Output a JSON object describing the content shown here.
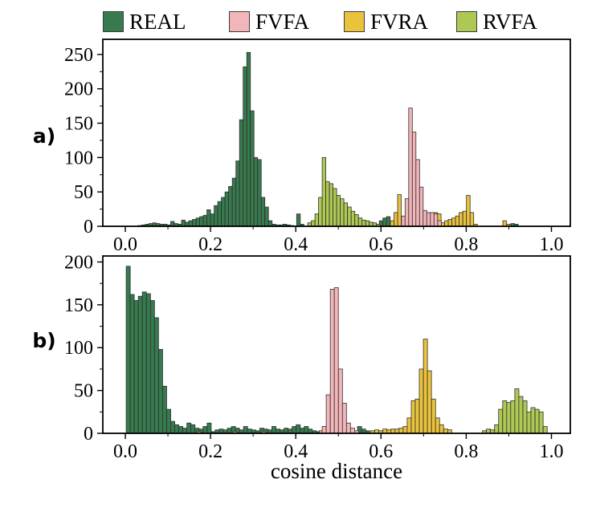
{
  "legend": {
    "position": "top",
    "items": [
      {
        "label": "REAL",
        "color": "#377a4e"
      },
      {
        "label": "FVFA",
        "color": "#f2b5ba"
      },
      {
        "label": "FVRA",
        "color": "#eac33d"
      },
      {
        "label": "RVFA",
        "color": "#aec854"
      }
    ]
  },
  "panels": {
    "a": {
      "label": "a)"
    },
    "b": {
      "label": "b)"
    }
  },
  "xlabel": "cosine distance",
  "colors": {
    "bar_edge": "#2e2e2e",
    "axis": "#000000",
    "background": "#ffffff"
  },
  "chart_data": [
    {
      "id": "a",
      "type": "bar",
      "subtype": "histogram",
      "title": "",
      "xlabel": "",
      "ylabel": "",
      "grid": false,
      "xlim": [
        -0.053,
        1.045
      ],
      "ylim": [
        0,
        272
      ],
      "yticks": [
        0,
        50,
        100,
        150,
        200,
        250
      ],
      "xticks": [
        0,
        0.2,
        0.4,
        0.6,
        0.8,
        1.0
      ],
      "xtick_labels": [
        "0.0",
        "0.2",
        "0.4",
        "0.6",
        "0.8",
        "1.0"
      ],
      "series": [
        {
          "name": "REAL",
          "color": "#377a4e",
          "segments": [
            {
              "x0": 0.03,
              "binw": 0.0085,
              "heights": [
                1,
                2,
                3,
                4,
                5,
                4,
                3,
                3,
                2,
                7,
                4,
                3,
                9,
                6,
                8,
                10,
                12,
                14,
                16,
                24,
                18,
                30,
                36,
                42,
                50,
                58,
                70,
                95,
                155,
                232,
                253,
                168,
                100,
                97,
                42,
                28,
                8,
                3,
                2,
                2,
                3,
                2,
                1
              ]
            },
            {
              "x0": 0.402,
              "binw": 0.0085,
              "heights": [
                18,
                3
              ]
            },
            {
              "x0": 0.562,
              "binw": 0.0085,
              "heights": [
                5,
                3,
                0,
                0,
                8,
                12,
                14
              ]
            },
            {
              "x0": 0.905,
              "binw": 0.0085,
              "heights": [
                4,
                3
              ]
            }
          ]
        },
        {
          "name": "RVFA",
          "color": "#aec854",
          "segments": [
            {
              "x0": 0.428,
              "binw": 0.0085,
              "heights": [
                5,
                8,
                18,
                42,
                100,
                65,
                62,
                55,
                45,
                40,
                34,
                28,
                22,
                17,
                12,
                9,
                8,
                6,
                5,
                3
              ]
            }
          ]
        },
        {
          "name": "FVRA",
          "color": "#eac33d",
          "segments": [
            {
              "x0": 0.622,
              "binw": 0.0085,
              "heights": [
                8,
                20,
                46
              ]
            },
            {
              "x0": 0.724,
              "binw": 0.0085,
              "heights": [
                20,
                18,
                5,
                8,
                10,
                12,
                15,
                20,
                22,
                45,
                20,
                3
              ]
            },
            {
              "x0": 0.886,
              "binw": 0.0085,
              "heights": [
                8,
                3
              ]
            }
          ]
        },
        {
          "name": "FVFA",
          "color": "#f2b5ba",
          "segments": [
            {
              "x0": 0.648,
              "binw": 0.0085,
              "heights": [
                15,
                40,
                172,
                137,
                97,
                57,
                23,
                20,
                20,
                18,
                8
              ]
            }
          ]
        }
      ]
    },
    {
      "id": "b",
      "type": "bar",
      "subtype": "histogram",
      "title": "",
      "xlabel": "cosine distance",
      "ylabel": "",
      "grid": false,
      "xlim": [
        -0.053,
        1.045
      ],
      "ylim": [
        0,
        207
      ],
      "yticks": [
        0,
        50,
        100,
        150,
        200
      ],
      "xticks": [
        0,
        0.2,
        0.4,
        0.6,
        0.8,
        1.0
      ],
      "xtick_labels": [
        "0.0",
        "0.2",
        "0.4",
        "0.6",
        "0.8",
        "1.0"
      ],
      "series": [
        {
          "name": "REAL",
          "color": "#377a4e",
          "segments": [
            {
              "x0": 0.002,
              "binw": 0.0095,
              "heights": [
                195,
                162,
                155,
                160,
                165,
                163,
                155,
                135,
                98,
                55,
                28,
                14,
                10,
                8,
                6,
                12,
                10,
                6,
                5,
                8,
                12,
                2,
                4,
                5,
                4,
                6,
                8,
                6,
                4,
                8,
                5,
                4,
                3,
                6,
                5,
                4,
                8,
                5,
                4,
                6,
                5,
                8,
                10,
                6,
                8,
                5,
                3,
                2
              ]
            },
            {
              "x0": 0.545,
              "binw": 0.0095,
              "heights": [
                8,
                5,
                3
              ]
            }
          ]
        },
        {
          "name": "RVFA",
          "color": "#aec854",
          "segments": [
            {
              "x0": 0.838,
              "binw": 0.0095,
              "heights": [
                3,
                5,
                4,
                10,
                28,
                38,
                36,
                38,
                52,
                43,
                38,
                25,
                30,
                28,
                25,
                8
              ]
            }
          ]
        },
        {
          "name": "FVRA",
          "color": "#eac33d",
          "segments": [
            {
              "x0": 0.168,
              "binw": 0.0095,
              "heights": [
                2
              ]
            },
            {
              "x0": 0.252,
              "binw": 0.0095,
              "heights": [
                2
              ]
            },
            {
              "x0": 0.32,
              "binw": 0.0095,
              "heights": [
                2
              ]
            },
            {
              "x0": 0.455,
              "binw": 0.0095,
              "heights": [
                3
              ]
            },
            {
              "x0": 0.576,
              "binw": 0.0095,
              "heights": [
                3,
                4,
                3,
                5,
                4,
                5,
                5,
                6,
                8,
                18,
                38,
                40,
                75,
                110,
                73,
                40,
                18,
                10,
                5,
                4
              ]
            }
          ]
        },
        {
          "name": "FVFA",
          "color": "#f2b5ba",
          "segments": [
            {
              "x0": 0.462,
              "binw": 0.0095,
              "heights": [
                8,
                45,
                168,
                170,
                75,
                35,
                12,
                6,
                3
              ]
            }
          ]
        }
      ]
    }
  ]
}
